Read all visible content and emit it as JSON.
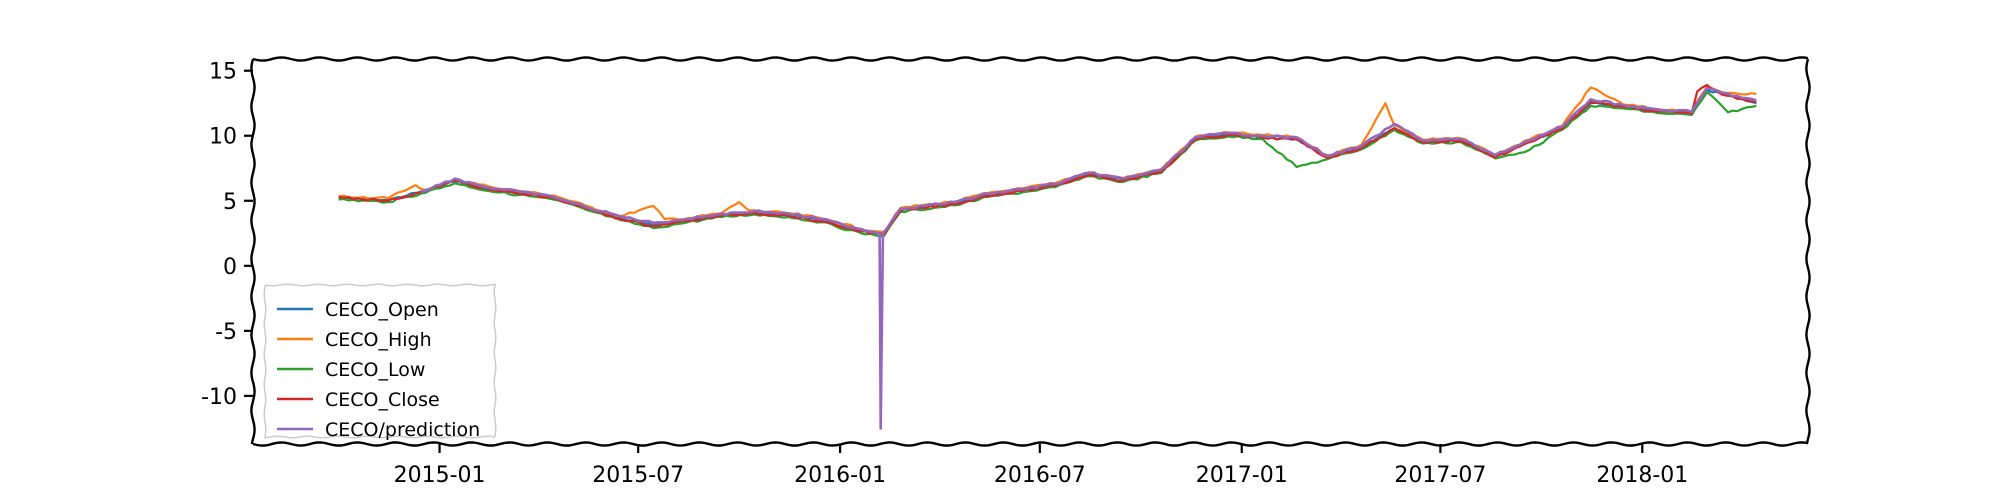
{
  "chart_data": {
    "type": "line",
    "x_type": "date",
    "x_range": [
      "2014-07-15",
      "2018-06-01"
    ],
    "ylim": [
      -13.7,
      15.9
    ],
    "x_ticks": [
      {
        "date": "2015-01-01",
        "label": "2015-01"
      },
      {
        "date": "2015-07-01",
        "label": "2015-07"
      },
      {
        "date": "2016-01-01",
        "label": "2016-01"
      },
      {
        "date": "2016-07-01",
        "label": "2016-07"
      },
      {
        "date": "2017-01-01",
        "label": "2017-01"
      },
      {
        "date": "2017-07-01",
        "label": "2017-07"
      },
      {
        "date": "2018-01-01",
        "label": "2018-01"
      }
    ],
    "y_ticks": [
      {
        "value": 15,
        "label": "15"
      },
      {
        "value": 10,
        "label": "10"
      },
      {
        "value": 5,
        "label": "5"
      },
      {
        "value": 0,
        "label": "0"
      },
      {
        "value": -5,
        "label": "-5"
      },
      {
        "value": -10,
        "label": "-10"
      }
    ],
    "grid": false,
    "legend_position": "lower-left",
    "series": [
      {
        "name": "CECO_Open",
        "color": "#1f77b4",
        "points": [
          [
            "2014-10-01",
            5.25
          ],
          [
            "2014-11-15",
            5.05
          ],
          [
            "2014-12-15",
            5.7
          ],
          [
            "2015-01-15",
            6.5
          ],
          [
            "2015-02-15",
            5.9
          ],
          [
            "2015-03-15",
            5.6
          ],
          [
            "2015-04-15",
            5.25
          ],
          [
            "2015-05-15",
            4.45
          ],
          [
            "2015-06-15",
            3.65
          ],
          [
            "2015-07-15",
            3.1
          ],
          [
            "2015-08-15",
            3.5
          ],
          [
            "2015-09-15",
            3.9
          ],
          [
            "2015-10-15",
            4.1
          ],
          [
            "2015-11-15",
            3.9
          ],
          [
            "2015-12-15",
            3.5
          ],
          [
            "2016-01-20",
            2.7
          ],
          [
            "2016-02-10",
            2.45
          ],
          [
            "2016-02-25",
            4.3
          ],
          [
            "2016-04-15",
            4.8
          ],
          [
            "2016-05-15",
            5.45
          ],
          [
            "2016-06-15",
            5.8
          ],
          [
            "2016-07-15",
            6.2
          ],
          [
            "2016-08-15",
            7.05
          ],
          [
            "2016-09-15",
            6.6
          ],
          [
            "2016-10-20",
            7.3
          ],
          [
            "2016-11-20",
            9.8
          ],
          [
            "2016-12-20",
            10.1
          ],
          [
            "2017-01-20",
            9.9
          ],
          [
            "2017-02-20",
            9.75
          ],
          [
            "2017-03-20",
            8.35
          ],
          [
            "2017-04-20",
            9.1
          ],
          [
            "2017-05-20",
            10.6
          ],
          [
            "2017-06-15",
            9.55
          ],
          [
            "2017-07-20",
            9.65
          ],
          [
            "2017-08-20",
            8.4
          ],
          [
            "2017-09-20",
            9.55
          ],
          [
            "2017-10-20",
            10.6
          ],
          [
            "2017-11-15",
            12.5
          ],
          [
            "2017-12-15",
            12.25
          ],
          [
            "2018-01-15",
            11.9
          ],
          [
            "2018-02-15",
            11.75
          ],
          [
            "2018-03-01",
            13.5
          ],
          [
            "2018-03-15",
            13.2
          ],
          [
            "2018-04-15",
            12.5
          ]
        ]
      },
      {
        "name": "CECO_High",
        "color": "#ff7f0e",
        "points": [
          [
            "2014-10-01",
            5.35
          ],
          [
            "2014-11-15",
            5.2
          ],
          [
            "2014-12-10",
            6.2
          ],
          [
            "2014-12-20",
            5.8
          ],
          [
            "2015-01-15",
            6.65
          ],
          [
            "2015-02-15",
            6.1
          ],
          [
            "2015-03-15",
            5.75
          ],
          [
            "2015-04-15",
            5.4
          ],
          [
            "2015-05-15",
            4.6
          ],
          [
            "2015-06-15",
            3.8
          ],
          [
            "2015-07-15",
            4.6
          ],
          [
            "2015-07-25",
            3.6
          ],
          [
            "2015-08-15",
            3.65
          ],
          [
            "2015-09-15",
            4.05
          ],
          [
            "2015-10-01",
            4.9
          ],
          [
            "2015-10-10",
            4.25
          ],
          [
            "2015-11-15",
            4.05
          ],
          [
            "2015-12-15",
            3.65
          ],
          [
            "2016-01-20",
            2.85
          ],
          [
            "2016-02-10",
            2.6
          ],
          [
            "2016-02-25",
            4.45
          ],
          [
            "2016-04-15",
            4.95
          ],
          [
            "2016-05-15",
            5.6
          ],
          [
            "2016-06-15",
            5.95
          ],
          [
            "2016-07-15",
            6.35
          ],
          [
            "2016-08-15",
            7.2
          ],
          [
            "2016-09-15",
            6.75
          ],
          [
            "2016-10-20",
            7.45
          ],
          [
            "2016-11-20",
            9.95
          ],
          [
            "2016-12-20",
            10.25
          ],
          [
            "2017-01-20",
            10.05
          ],
          [
            "2017-02-20",
            9.9
          ],
          [
            "2017-03-20",
            8.5
          ],
          [
            "2017-04-20",
            9.3
          ],
          [
            "2017-05-12",
            12.5
          ],
          [
            "2017-05-20",
            10.8
          ],
          [
            "2017-06-15",
            9.7
          ],
          [
            "2017-07-20",
            9.8
          ],
          [
            "2017-08-20",
            8.55
          ],
          [
            "2017-09-20",
            9.7
          ],
          [
            "2017-10-20",
            10.75
          ],
          [
            "2017-11-15",
            13.7
          ],
          [
            "2017-12-15",
            12.4
          ],
          [
            "2018-01-15",
            12.05
          ],
          [
            "2018-02-15",
            11.9
          ],
          [
            "2018-03-01",
            13.75
          ],
          [
            "2018-03-15",
            13.35
          ],
          [
            "2018-04-15",
            13.2
          ]
        ]
      },
      {
        "name": "CECO_Low",
        "color": "#2ca02c",
        "points": [
          [
            "2014-10-01",
            5.1
          ],
          [
            "2014-11-15",
            4.9
          ],
          [
            "2014-12-15",
            5.55
          ],
          [
            "2015-01-15",
            6.35
          ],
          [
            "2015-02-15",
            5.75
          ],
          [
            "2015-03-15",
            5.45
          ],
          [
            "2015-04-15",
            5.1
          ],
          [
            "2015-05-15",
            4.3
          ],
          [
            "2015-06-15",
            3.5
          ],
          [
            "2015-07-15",
            2.9
          ],
          [
            "2015-08-15",
            3.35
          ],
          [
            "2015-09-15",
            3.75
          ],
          [
            "2015-10-15",
            3.95
          ],
          [
            "2015-11-15",
            3.75
          ],
          [
            "2015-12-15",
            3.35
          ],
          [
            "2016-01-20",
            2.5
          ],
          [
            "2016-02-10",
            2.3
          ],
          [
            "2016-02-25",
            4.15
          ],
          [
            "2016-04-15",
            4.65
          ],
          [
            "2016-05-15",
            5.3
          ],
          [
            "2016-06-15",
            5.65
          ],
          [
            "2016-07-15",
            6.05
          ],
          [
            "2016-08-15",
            6.9
          ],
          [
            "2016-09-15",
            6.45
          ],
          [
            "2016-10-20",
            7.15
          ],
          [
            "2016-11-20",
            9.65
          ],
          [
            "2016-12-20",
            9.95
          ],
          [
            "2017-01-20",
            9.75
          ],
          [
            "2017-02-20",
            7.6
          ],
          [
            "2017-03-20",
            8.2
          ],
          [
            "2017-04-20",
            8.95
          ],
          [
            "2017-05-20",
            10.45
          ],
          [
            "2017-06-15",
            9.4
          ],
          [
            "2017-07-20",
            9.5
          ],
          [
            "2017-08-20",
            8.25
          ],
          [
            "2017-09-20",
            8.9
          ],
          [
            "2017-10-20",
            10.45
          ],
          [
            "2017-11-15",
            12.3
          ],
          [
            "2017-12-15",
            12.1
          ],
          [
            "2018-01-15",
            11.75
          ],
          [
            "2018-02-15",
            11.6
          ],
          [
            "2018-03-01",
            13.35
          ],
          [
            "2018-03-20",
            11.8
          ],
          [
            "2018-04-15",
            12.3
          ]
        ]
      },
      {
        "name": "CECO_Close",
        "color": "#d62728",
        "points": [
          [
            "2014-10-01",
            5.3
          ],
          [
            "2014-11-15",
            5.0
          ],
          [
            "2014-12-15",
            5.65
          ],
          [
            "2015-01-15",
            6.55
          ],
          [
            "2015-02-15",
            5.85
          ],
          [
            "2015-03-15",
            5.55
          ],
          [
            "2015-04-15",
            5.2
          ],
          [
            "2015-05-15",
            4.4
          ],
          [
            "2015-06-15",
            3.6
          ],
          [
            "2015-07-15",
            3.05
          ],
          [
            "2015-08-15",
            3.45
          ],
          [
            "2015-09-15",
            3.85
          ],
          [
            "2015-10-15",
            4.05
          ],
          [
            "2015-11-15",
            3.85
          ],
          [
            "2015-12-15",
            3.4
          ],
          [
            "2016-01-20",
            2.65
          ],
          [
            "2016-02-10",
            2.4
          ],
          [
            "2016-02-25",
            4.25
          ],
          [
            "2016-04-15",
            4.75
          ],
          [
            "2016-05-15",
            5.4
          ],
          [
            "2016-06-15",
            5.75
          ],
          [
            "2016-07-15",
            6.15
          ],
          [
            "2016-08-15",
            7.0
          ],
          [
            "2016-09-15",
            6.55
          ],
          [
            "2016-10-20",
            7.25
          ],
          [
            "2016-11-10",
            8.9
          ],
          [
            "2016-11-20",
            9.75
          ],
          [
            "2016-12-20",
            10.05
          ],
          [
            "2017-01-20",
            9.85
          ],
          [
            "2017-02-20",
            9.7
          ],
          [
            "2017-03-20",
            8.3
          ],
          [
            "2017-04-20",
            9.05
          ],
          [
            "2017-05-20",
            10.55
          ],
          [
            "2017-06-15",
            9.5
          ],
          [
            "2017-07-20",
            9.6
          ],
          [
            "2017-08-20",
            8.35
          ],
          [
            "2017-09-20",
            9.5
          ],
          [
            "2017-10-20",
            10.55
          ],
          [
            "2017-11-15",
            12.6
          ],
          [
            "2017-12-15",
            12.2
          ],
          [
            "2018-01-15",
            11.85
          ],
          [
            "2018-02-15",
            11.7
          ],
          [
            "2018-02-20",
            13.4
          ],
          [
            "2018-03-01",
            13.9
          ],
          [
            "2018-03-15",
            13.15
          ],
          [
            "2018-04-15",
            12.6
          ]
        ]
      },
      {
        "name": "CECO/prediction",
        "color": "#9467bd",
        "points": [
          [
            "2014-12-15",
            5.7
          ],
          [
            "2015-01-15",
            6.7
          ],
          [
            "2015-02-15",
            6.0
          ],
          [
            "2015-03-15",
            5.7
          ],
          [
            "2015-04-15",
            5.3
          ],
          [
            "2015-05-15",
            4.5
          ],
          [
            "2015-06-15",
            3.8
          ],
          [
            "2015-07-15",
            3.3
          ],
          [
            "2015-08-15",
            3.6
          ],
          [
            "2015-09-15",
            4.0
          ],
          [
            "2015-10-15",
            4.2
          ],
          [
            "2015-11-15",
            4.0
          ],
          [
            "2015-12-15",
            3.6
          ],
          [
            "2016-01-20",
            2.8
          ],
          [
            "2016-02-06",
            2.5
          ],
          [
            "2016-02-07",
            -12.5
          ],
          [
            "2016-02-09",
            2.5
          ],
          [
            "2016-02-25",
            4.4
          ],
          [
            "2016-04-15",
            4.9
          ],
          [
            "2016-05-15",
            5.55
          ],
          [
            "2016-06-15",
            5.9
          ],
          [
            "2016-07-15",
            6.3
          ],
          [
            "2016-08-15",
            7.15
          ],
          [
            "2016-09-15",
            6.7
          ],
          [
            "2016-10-20",
            7.4
          ],
          [
            "2016-11-20",
            9.9
          ],
          [
            "2016-12-20",
            10.2
          ],
          [
            "2017-01-20",
            10.0
          ],
          [
            "2017-02-20",
            9.85
          ],
          [
            "2017-03-20",
            8.45
          ],
          [
            "2017-04-20",
            9.2
          ],
          [
            "2017-05-20",
            10.9
          ],
          [
            "2017-06-15",
            9.65
          ],
          [
            "2017-07-20",
            9.75
          ],
          [
            "2017-08-20",
            8.5
          ],
          [
            "2017-09-20",
            9.65
          ],
          [
            "2017-10-20",
            10.7
          ],
          [
            "2017-11-15",
            12.8
          ],
          [
            "2017-12-15",
            12.35
          ],
          [
            "2018-01-15",
            12.0
          ],
          [
            "2018-02-15",
            11.85
          ],
          [
            "2018-03-01",
            13.65
          ],
          [
            "2018-03-15",
            13.3
          ],
          [
            "2018-04-15",
            12.7
          ]
        ]
      }
    ]
  }
}
